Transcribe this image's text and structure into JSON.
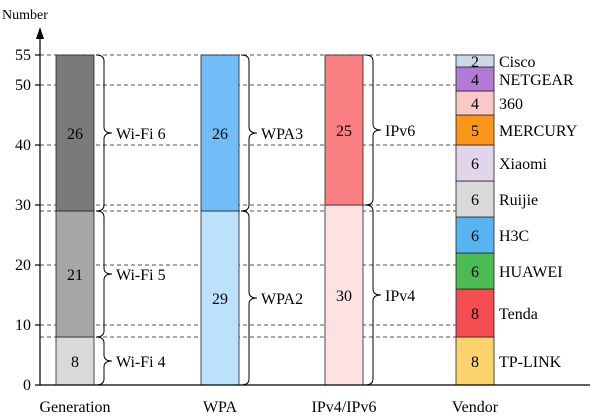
{
  "chart_data": {
    "type": "bar",
    "stacked": true,
    "ylabel": "Number",
    "ylim": [
      0,
      55
    ],
    "yticks": [
      0,
      10,
      20,
      30,
      40,
      50,
      55
    ],
    "grid": "dashed horizontal lines at segment boundaries",
    "categories": [
      "Generation",
      "WPA",
      "IPv4/IPv6",
      "Vendor"
    ],
    "stacks": [
      {
        "category": "Generation",
        "segments": [
          {
            "name": "Wi-Fi 4",
            "value": 8,
            "color": "#d9d9d9"
          },
          {
            "name": "Wi-Fi 5",
            "value": 21,
            "color": "#a6a6a6"
          },
          {
            "name": "Wi-Fi 6",
            "value": 26,
            "color": "#7a7a7a"
          }
        ]
      },
      {
        "category": "WPA",
        "segments": [
          {
            "name": "WPA2",
            "value": 29,
            "color": "#bde1fb"
          },
          {
            "name": "WPA3",
            "value": 26,
            "color": "#6fbcf6"
          }
        ]
      },
      {
        "category": "IPv4/IPv6",
        "segments": [
          {
            "name": "IPv4",
            "value": 30,
            "color": "#fde1e3"
          },
          {
            "name": "IPv6",
            "value": 25,
            "color": "#fa7f82"
          }
        ]
      },
      {
        "category": "Vendor",
        "segments": [
          {
            "name": "TP-LINK",
            "value": 8,
            "color": "#fdd36e"
          },
          {
            "name": "Tenda",
            "value": 8,
            "color": "#f54d4f"
          },
          {
            "name": "HUAWEI",
            "value": 6,
            "color": "#4cbb54"
          },
          {
            "name": "H3C",
            "value": 6,
            "color": "#57b4f1"
          },
          {
            "name": "Ruijie",
            "value": 6,
            "color": "#dadada"
          },
          {
            "name": "Xiaomi",
            "value": 6,
            "color": "#e1d5ec"
          },
          {
            "name": "MERCURY",
            "value": 5,
            "color": "#fb9619"
          },
          {
            "name": "360",
            "value": 4,
            "color": "#fcc8c6"
          },
          {
            "name": "NETGEAR",
            "value": 4,
            "color": "#b27ad6"
          },
          {
            "name": "Cisco",
            "value": 2,
            "color": "#cad9e6"
          }
        ]
      }
    ]
  }
}
